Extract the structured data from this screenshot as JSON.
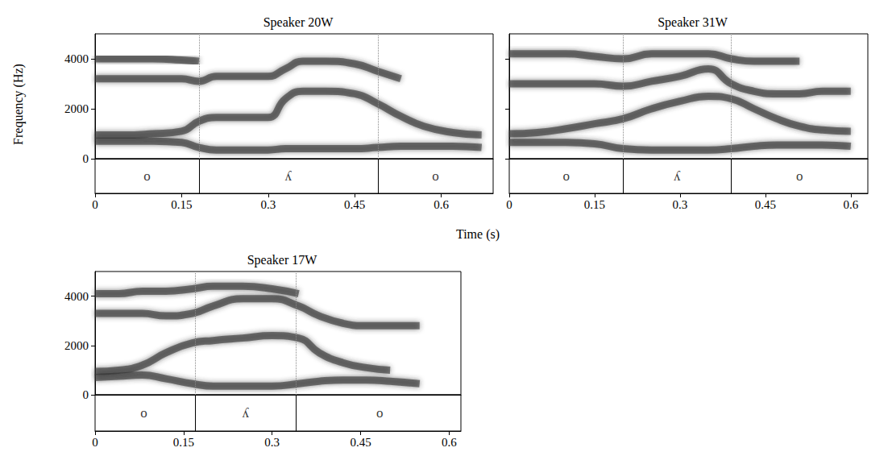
{
  "chart_data": [
    {
      "type": "line",
      "title": "Speaker 20W",
      "ylabel": "Frequency (Hz)",
      "xlabel": "Time (s)",
      "x": [
        0,
        0.05,
        0.1,
        0.15,
        0.18,
        0.21,
        0.25,
        0.3,
        0.33,
        0.36,
        0.4,
        0.45,
        0.49,
        0.53,
        0.57,
        0.62,
        0.67
      ],
      "series": [
        {
          "color": "#333333",
          "values": [
            700,
            700,
            700,
            650,
            450,
            350,
            350,
            350,
            400,
            400,
            400,
            400,
            450,
            500,
            500,
            500,
            450
          ]
        },
        {
          "color": "#333333",
          "values": [
            950,
            950,
            1000,
            1100,
            1500,
            1650,
            1650,
            1650,
            2400,
            2700,
            2700,
            2600,
            2200,
            1700,
            1300,
            1050,
            950
          ]
        },
        {
          "color": "#333333",
          "values": [
            3200,
            3200,
            3200,
            3200,
            3100,
            3300,
            3300,
            3300,
            3600,
            3900,
            3900,
            3800,
            3500,
            3200,
            null,
            null,
            null
          ]
        },
        {
          "color": "#333333",
          "values": [
            4000,
            4000,
            4000,
            3950,
            3900,
            null,
            null,
            null,
            null,
            null,
            null,
            null,
            null,
            null,
            null,
            null,
            null
          ]
        }
      ],
      "xlim": [
        0,
        0.69
      ],
      "ylim": [
        0,
        5000
      ],
      "xticks": [
        0,
        0.15,
        0.3,
        0.45,
        0.6
      ],
      "yticks": [
        0,
        2000,
        4000
      ],
      "segments": [
        {
          "label": "o",
          "start": 0,
          "end": 0.18
        },
        {
          "label": "ʎ",
          "start": 0.18,
          "end": 0.49
        },
        {
          "label": "o",
          "start": 0.49,
          "end": 0.69
        }
      ]
    },
    {
      "type": "line",
      "title": "Speaker 31W",
      "x": [
        0,
        0.05,
        0.1,
        0.15,
        0.2,
        0.25,
        0.3,
        0.35,
        0.39,
        0.43,
        0.47,
        0.51,
        0.55,
        0.6
      ],
      "series": [
        {
          "color": "#333333",
          "values": [
            650,
            650,
            650,
            600,
            400,
            350,
            350,
            350,
            400,
            500,
            550,
            550,
            550,
            500
          ]
        },
        {
          "color": "#333333",
          "values": [
            1000,
            1050,
            1200,
            1400,
            1600,
            2000,
            2300,
            2500,
            2400,
            2000,
            1600,
            1300,
            1150,
            1100
          ]
        },
        {
          "color": "#333333",
          "values": [
            3000,
            3000,
            3000,
            3000,
            2900,
            3100,
            3300,
            3600,
            3000,
            2700,
            2600,
            2600,
            2700,
            2700
          ]
        },
        {
          "color": "#333333",
          "values": [
            4200,
            4200,
            4200,
            4100,
            4000,
            4200,
            4200,
            4200,
            4000,
            3900,
            3900,
            3900,
            null,
            null
          ]
        }
      ],
      "xlim": [
        0,
        0.63
      ],
      "ylim": [
        0,
        5000
      ],
      "xticks": [
        0,
        0.15,
        0.3,
        0.45,
        0.6
      ],
      "yticks": [
        0,
        2000,
        4000
      ],
      "tick_labels": "x",
      "segments": [
        {
          "label": "o",
          "start": 0,
          "end": 0.2
        },
        {
          "label": "ʎ",
          "start": 0.2,
          "end": 0.39
        },
        {
          "label": "o",
          "start": 0.39,
          "end": 0.63
        }
      ]
    },
    {
      "type": "line",
      "title": "Speaker 17W",
      "x": [
        0,
        0.04,
        0.08,
        0.12,
        0.165,
        0.2,
        0.25,
        0.3,
        0.345,
        0.38,
        0.42,
        0.46,
        0.5,
        0.55
      ],
      "series": [
        {
          "color": "#333333",
          "values": [
            700,
            750,
            800,
            650,
            450,
            350,
            350,
            350,
            450,
            550,
            600,
            600,
            550,
            450
          ]
        },
        {
          "color": "#333333",
          "values": [
            950,
            1000,
            1200,
            1700,
            2100,
            2200,
            2300,
            2400,
            2300,
            1700,
            1300,
            1100,
            1000,
            null
          ]
        },
        {
          "color": "#333333",
          "values": [
            3300,
            3300,
            3300,
            3200,
            3300,
            3600,
            3900,
            3900,
            3600,
            3200,
            2900,
            2800,
            2800,
            2800
          ]
        },
        {
          "color": "#333333",
          "values": [
            4100,
            4100,
            4200,
            4200,
            4300,
            4400,
            4400,
            4300,
            4100,
            null,
            null,
            null,
            null,
            null
          ]
        }
      ],
      "xlim": [
        0,
        0.62
      ],
      "ylim": [
        0,
        5000
      ],
      "xticks": [
        0,
        0.15,
        0.3,
        0.45,
        0.6
      ],
      "yticks": [
        0,
        2000,
        4000
      ],
      "segments": [
        {
          "label": "o",
          "start": 0,
          "end": 0.165
        },
        {
          "label": "ʎ",
          "start": 0.165,
          "end": 0.345
        },
        {
          "label": "o",
          "start": 0.345,
          "end": 0.62
        }
      ]
    }
  ]
}
